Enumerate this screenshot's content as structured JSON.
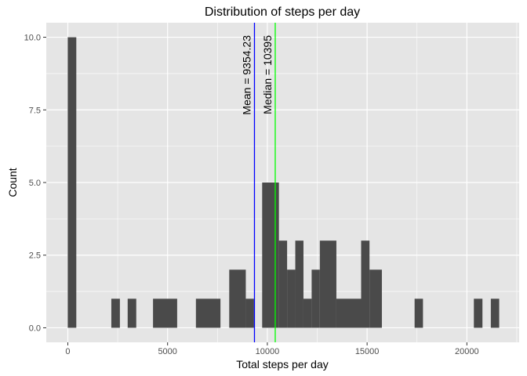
{
  "chart_data": {
    "type": "bar",
    "title": "Distribution of steps per day",
    "xlabel": "Total steps per day",
    "ylabel": "Count",
    "xlim": [
      -1080,
      22620
    ],
    "ylim": [
      -0.5,
      10.5
    ],
    "xticks": [
      0,
      5000,
      10000,
      15000,
      20000
    ],
    "xtick_labels": [
      "0",
      "5000",
      "10000",
      "15000",
      "20000"
    ],
    "yticks": [
      0,
      2.5,
      5,
      7.5,
      10
    ],
    "ytick_labels": [
      "0.0",
      "2.5",
      "5.0",
      "7.5",
      "10.0"
    ],
    "grid": true,
    "bin_width": 430,
    "bins": [
      {
        "x0": -5,
        "x1": 425,
        "count": 10
      },
      {
        "x0": 2180,
        "x1": 2610,
        "count": 1
      },
      {
        "x0": 3000,
        "x1": 3430,
        "count": 1
      },
      {
        "x0": 4270,
        "x1": 5480,
        "count": 1
      },
      {
        "x0": 6420,
        "x1": 7650,
        "count": 1
      },
      {
        "x0": 8090,
        "x1": 8920,
        "count": 2
      },
      {
        "x0": 8920,
        "x1": 9330,
        "count": 1
      },
      {
        "x0": 9740,
        "x1": 10580,
        "count": 5
      },
      {
        "x0": 10580,
        "x1": 10990,
        "count": 3
      },
      {
        "x0": 10990,
        "x1": 11400,
        "count": 2
      },
      {
        "x0": 11400,
        "x1": 11810,
        "count": 3
      },
      {
        "x0": 11810,
        "x1": 12220,
        "count": 1
      },
      {
        "x0": 12220,
        "x1": 12630,
        "count": 2
      },
      {
        "x0": 12630,
        "x1": 13460,
        "count": 3
      },
      {
        "x0": 13460,
        "x1": 14700,
        "count": 1
      },
      {
        "x0": 14700,
        "x1": 15120,
        "count": 3
      },
      {
        "x0": 15120,
        "x1": 15740,
        "count": 2
      },
      {
        "x0": 17380,
        "x1": 17800,
        "count": 1
      },
      {
        "x0": 20350,
        "x1": 20780,
        "count": 1
      },
      {
        "x0": 21200,
        "x1": 21620,
        "count": 1
      }
    ],
    "annotations": [
      {
        "label": "Mean =  9354.23",
        "x": 9354.23,
        "color": "#0000ff"
      },
      {
        "label": "Median =  10395",
        "x": 10395,
        "color": "#00ff00"
      }
    ],
    "colors": {
      "panel_background": "#e5e5e5",
      "grid": "#ffffff",
      "bar_fill": "#4a4a4a"
    }
  }
}
